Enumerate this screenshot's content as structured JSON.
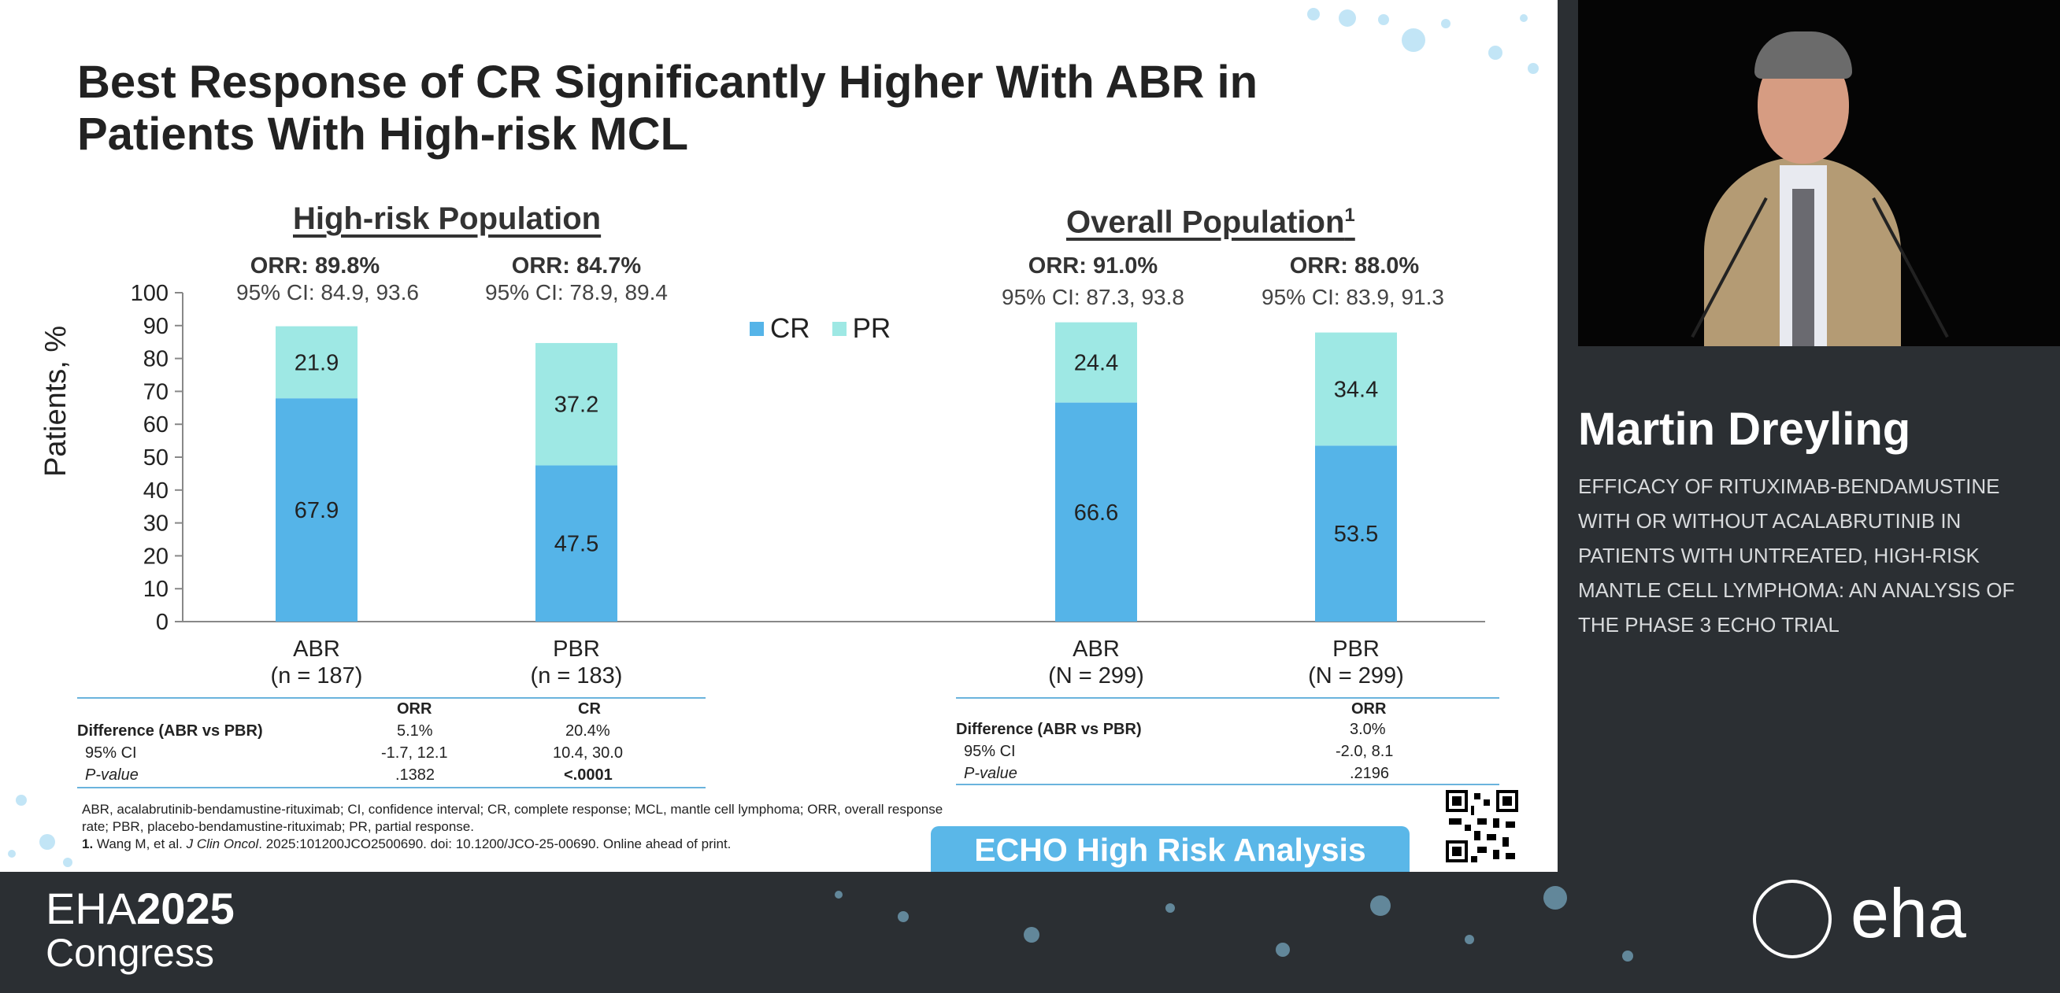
{
  "slide": {
    "title": "Best Response of CR Significantly Higher With ABR in Patients With High-risk MCL",
    "left_panel": {
      "heading": "High-risk Population",
      "groups": [
        {
          "orr": "ORR: 89.8%",
          "ci": "95% CI: 84.9, 93.6",
          "name": "ABR",
          "n": "(n = 187)"
        },
        {
          "orr": "ORR: 84.7%",
          "ci": "95% CI: 78.9, 89.4",
          "name": "PBR",
          "n": "(n = 183)"
        }
      ]
    },
    "right_panel": {
      "heading": "Overall Population",
      "heading_sup": "1",
      "groups": [
        {
          "orr": "ORR: 91.0%",
          "ci": "95% CI: 87.3, 93.8",
          "name": "ABR",
          "n": "(N = 299)"
        },
        {
          "orr": "ORR: 88.0%",
          "ci": "95% CI: 83.9, 91.3",
          "name": "PBR",
          "n": "(N = 299)"
        }
      ]
    },
    "legend": {
      "cr": "CR",
      "pr": "PR"
    },
    "left_table": {
      "col_headers": [
        "ORR",
        "CR"
      ],
      "rows": [
        {
          "label": "Difference (ABR vs PBR)",
          "values": [
            "5.1%",
            "20.4%"
          ]
        },
        {
          "label": "95% CI",
          "values": [
            "-1.7, 12.1",
            "10.4, 30.0"
          ]
        },
        {
          "label": "P-value",
          "values": [
            ".1382",
            "<.0001"
          ]
        }
      ]
    },
    "right_table": {
      "col_headers": [
        "ORR"
      ],
      "rows": [
        {
          "label": "Difference (ABR vs PBR)",
          "values": [
            "3.0%"
          ]
        },
        {
          "label": "95% CI",
          "values": [
            "-2.0, 8.1"
          ]
        },
        {
          "label": "P-value",
          "values": [
            ".2196"
          ]
        }
      ]
    },
    "footnote_line1": "ABR, acalabrutinib-bendamustine-rituximab; CI, confidence interval; CR, complete response; MCL, mantle cell lymphoma; ORR, overall response rate; PBR, placebo-bendamustine-rituximab; PR, partial response.",
    "footnote_num": "1.",
    "footnote_ref_pre": " Wang M, et al. ",
    "footnote_ref_journal": "J Clin Oncol",
    "footnote_ref_post": ". 2025:101200JCO2500690. doi: 10.1200/JCO-25-00690. Online ahead of print.",
    "banner": "ECHO High Risk Analysis"
  },
  "chart_data": {
    "type": "bar",
    "stacked": true,
    "ylabel": "Patients, %",
    "ylim": [
      0,
      100
    ],
    "yticks": [
      0,
      10,
      20,
      30,
      40,
      50,
      60,
      70,
      80,
      90,
      100
    ],
    "categories": [
      "ABR",
      "PBR",
      "ABR",
      "PBR"
    ],
    "series": [
      {
        "name": "CR",
        "values": [
          67.9,
          47.5,
          66.6,
          53.5
        ]
      },
      {
        "name": "PR",
        "values": [
          21.9,
          37.2,
          24.4,
          34.4
        ]
      }
    ],
    "colors": {
      "CR": "#55b4e8",
      "PR": "#9ee8e4"
    },
    "legend_position": "top-center",
    "grid": false
  },
  "presenter": {
    "name": "Martin Dreyling",
    "talk_title": "EFFICACY OF RITUXIMAB-BENDAMUSTINE WITH OR WITHOUT ACALABRUTINIB IN PATIENTS WITH UNTREATED, HIGH-RISK MANTLE CELL LYMPHOMA: AN ANALYSIS OF THE PHASE 3 ECHO TRIAL"
  },
  "footer": {
    "eha_prefix": "EHA",
    "eha_year": "2025",
    "congress": "Congress",
    "logo_text": "eha"
  }
}
